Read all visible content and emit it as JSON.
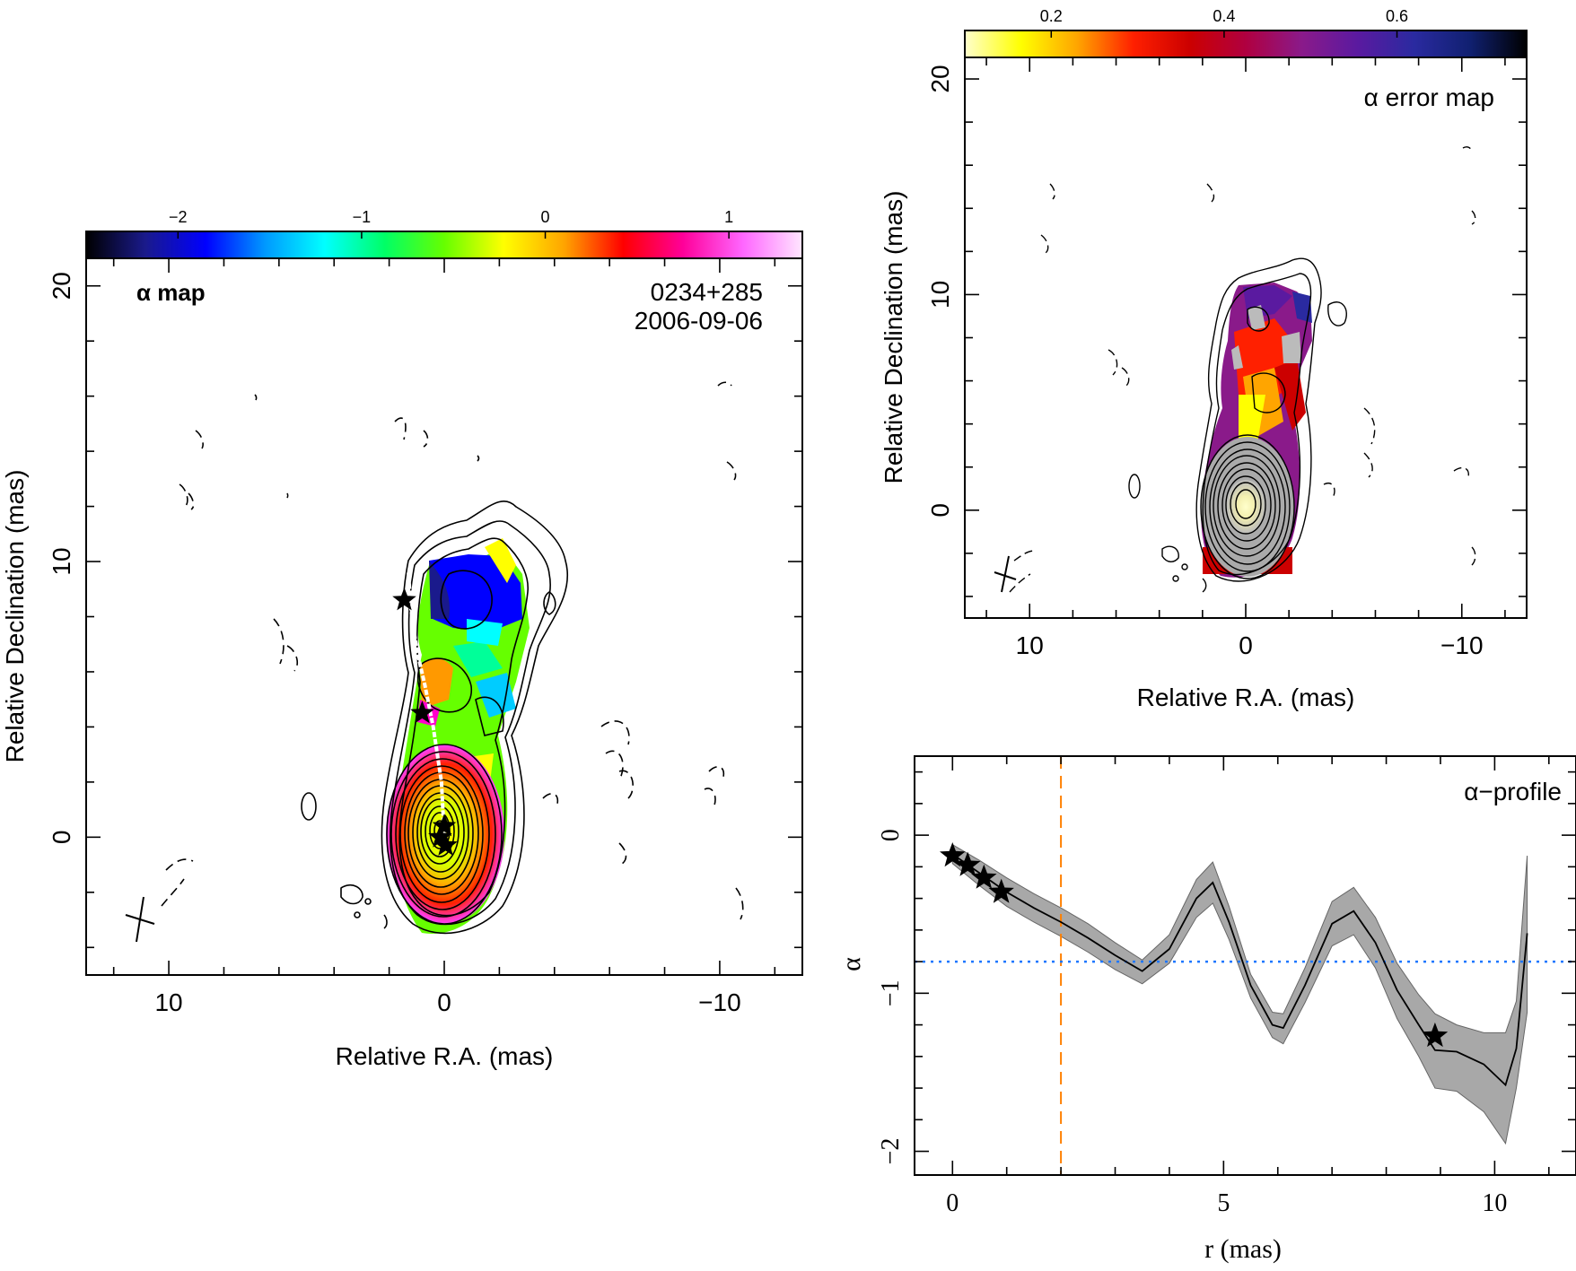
{
  "chart_data": [
    {
      "panel": "alpha-map",
      "type": "heatmap",
      "annotation": "α map",
      "source": "0234+285",
      "date": "2006-09-06",
      "xlabel": "Relative R.A. (mas)",
      "ylabel": "Relative Declination (mas)",
      "xlim": [
        13,
        -13
      ],
      "ylim": [
        -5,
        21
      ],
      "xticks": [
        10,
        0,
        -10
      ],
      "xtick_labels": [
        "10",
        "0",
        "−10"
      ],
      "yticks": [
        0,
        10,
        20
      ],
      "ytick_labels": [
        "0",
        "10",
        "20"
      ],
      "colorbar": {
        "range": [
          -2.5,
          1.4
        ],
        "ticks": [
          -2,
          -1,
          0,
          1
        ],
        "tick_labels": [
          "−2",
          "−1",
          "0",
          "1"
        ],
        "colors": [
          "#000000",
          "#1a1a8c",
          "#0000ff",
          "#0099ff",
          "#00ffff",
          "#00ff66",
          "#66ff00",
          "#ffff00",
          "#ffa500",
          "#ff0000",
          "#ff0099",
          "#ff66ff",
          "#ffe6ff"
        ]
      },
      "ridge_line": [
        [
          0,
          0
        ],
        [
          0.1,
          2
        ],
        [
          0.4,
          4
        ],
        [
          0.7,
          5.5
        ],
        [
          1.0,
          6.8
        ],
        [
          1.2,
          8.2
        ],
        [
          1.3,
          9.6
        ]
      ],
      "components": [
        [
          0,
          0.4
        ],
        [
          0.15,
          0
        ],
        [
          -0.05,
          -0.3
        ],
        [
          0.8,
          4.5
        ],
        [
          1.45,
          8.6
        ]
      ]
    },
    {
      "panel": "alpha-error-map",
      "type": "heatmap",
      "annotation": "α error map",
      "xlabel": "Relative R.A. (mas)",
      "ylabel": "Relative Declination (mas)",
      "xlim": [
        13,
        -13
      ],
      "ylim": [
        -5,
        21
      ],
      "xticks": [
        10,
        0,
        -10
      ],
      "xtick_labels": [
        "10",
        "0",
        "−10"
      ],
      "yticks": [
        0,
        10,
        20
      ],
      "ytick_labels": [
        "0",
        "10",
        "20"
      ],
      "colorbar": {
        "range": [
          0.1,
          0.75
        ],
        "ticks": [
          0.2,
          0.4,
          0.6
        ],
        "tick_labels": [
          "0.2",
          "0.4",
          "0.6"
        ],
        "colors": [
          "#ffffcc",
          "#ffff00",
          "#ffa500",
          "#ff2000",
          "#cc0000",
          "#b00040",
          "#8a1a8a",
          "#5a1aa0",
          "#2a2aa0",
          "#102070",
          "#000000"
        ]
      }
    },
    {
      "panel": "alpha-profile",
      "type": "line",
      "annotation": "α−profile",
      "xlabel": "r (mas)",
      "ylabel": "α",
      "xlim": [
        -0.7,
        11.5
      ],
      "ylim": [
        -2.15,
        0.5
      ],
      "xticks": [
        0,
        5,
        10
      ],
      "xtick_labels": [
        "0",
        "5",
        "10"
      ],
      "yticks": [
        0,
        -1,
        -2
      ],
      "ytick_labels": [
        "0",
        "−1",
        "−2"
      ],
      "series": [
        {
          "x": [
            0,
            0.5,
            1,
            1.5,
            2,
            2.5,
            3,
            3.5,
            4,
            4.5,
            4.8,
            5.1,
            5.5,
            5.9,
            6.1,
            6.5,
            7,
            7.4,
            7.8,
            8.2,
            8.6,
            8.9,
            9.3,
            9.8,
            10.2,
            10.4,
            10.6
          ],
          "y": [
            -0.12,
            -0.24,
            -0.36,
            -0.46,
            -0.55,
            -0.65,
            -0.76,
            -0.86,
            -0.72,
            -0.4,
            -0.3,
            -0.55,
            -0.95,
            -1.2,
            -1.22,
            -0.95,
            -0.56,
            -0.48,
            -0.68,
            -0.98,
            -1.2,
            -1.36,
            -1.37,
            -1.45,
            -1.58,
            -1.35,
            -0.62
          ],
          "band_upper": [
            -0.06,
            -0.16,
            -0.27,
            -0.37,
            -0.46,
            -0.56,
            -0.68,
            -0.79,
            -0.63,
            -0.28,
            -0.17,
            -0.45,
            -0.88,
            -1.12,
            -1.13,
            -0.84,
            -0.42,
            -0.33,
            -0.52,
            -0.81,
            -1.01,
            -1.13,
            -1.2,
            -1.25,
            -1.25,
            -1.05,
            -0.13
          ],
          "band_lower": [
            -0.18,
            -0.32,
            -0.45,
            -0.55,
            -0.64,
            -0.74,
            -0.85,
            -0.94,
            -0.81,
            -0.52,
            -0.43,
            -0.66,
            -1.03,
            -1.28,
            -1.32,
            -1.06,
            -0.7,
            -0.63,
            -0.84,
            -1.16,
            -1.4,
            -1.6,
            -1.62,
            -1.75,
            -1.95,
            -1.6,
            -1.12
          ]
        }
      ],
      "reference_lines": [
        {
          "axis": "x",
          "value": 2.0,
          "color": "#ff8000",
          "style": "dashed"
        },
        {
          "axis": "y",
          "value": -0.8,
          "color": "#1f77ff",
          "style": "dotted"
        }
      ],
      "components": [
        [
          0,
          -0.13
        ],
        [
          0.28,
          -0.19
        ],
        [
          0.58,
          -0.27
        ],
        [
          0.9,
          -0.36
        ],
        [
          8.9,
          -1.27
        ]
      ]
    }
  ]
}
